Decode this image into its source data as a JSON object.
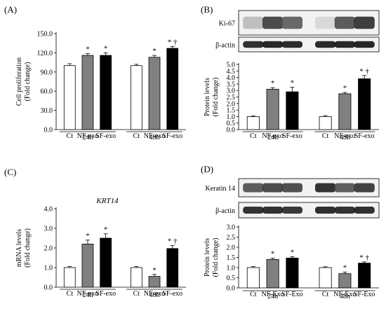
{
  "panels": [
    {
      "id": "A",
      "label": "(A)",
      "title": "",
      "ylabel_lines": [
        "Cell proliferation",
        "(Fold change)"
      ],
      "yticks": [
        "0.0",
        "30.0",
        "60.0",
        "90.0",
        "120.0",
        "150.0"
      ]
    },
    {
      "id": "B",
      "label": "(B)",
      "blot_labels": [
        "Ki-67",
        "β-actin"
      ],
      "ylabel_lines": [
        "Protein levels",
        "(Fold change)"
      ],
      "yticks": [
        "0.0",
        "0.5",
        "1.0",
        "1.5",
        "2.0",
        "2.5",
        "3.0",
        "3.5",
        "4.0",
        "4.5",
        "5.0"
      ]
    },
    {
      "id": "C",
      "label": "(C)",
      "title": "KRT14",
      "ylabel_lines": [
        "mRNA levels",
        "(Fold change)"
      ],
      "yticks": [
        "0.0",
        "1.0",
        "2.0",
        "3.0",
        "4.0"
      ]
    },
    {
      "id": "D",
      "label": "(D)",
      "blot_labels": [
        "Keratin 14",
        "β-actin"
      ],
      "ylabel_lines": [
        "Protein levels",
        "(Fold change)"
      ],
      "yticks": [
        "0.0",
        "0.5",
        "1.0",
        "1.5",
        "2.0",
        "2.5",
        "3.0"
      ]
    }
  ],
  "colors": {
    "Ct": "#ffffff",
    "NF": "#808080",
    "SF": "#000000"
  },
  "chart_data": [
    {
      "panel": "A",
      "type": "bar",
      "groups": [
        "24h",
        "48h"
      ],
      "categories": [
        "Ct",
        "NF-exo",
        "SF-exo",
        "Ct",
        "NF-exo",
        "SF-exo"
      ],
      "values": [
        100,
        116,
        116,
        100,
        113,
        127
      ],
      "errors": [
        3,
        3,
        4,
        2,
        3,
        3
      ],
      "annotations": [
        "",
        "*",
        "*",
        "",
        "*",
        "* †"
      ],
      "ylim": [
        0,
        150
      ]
    },
    {
      "panel": "B",
      "type": "bar",
      "groups": [
        "24h",
        "48h"
      ],
      "categories": [
        "Ct",
        "NF-exo",
        "SF-exo",
        "Ct",
        "NF-exo",
        "SF-exo"
      ],
      "values": [
        1.0,
        3.1,
        2.9,
        1.0,
        2.75,
        3.9
      ],
      "errors": [
        0.05,
        0.12,
        0.35,
        0.07,
        0.1,
        0.25
      ],
      "annotations": [
        "",
        "*",
        "*",
        "",
        "*",
        "* †"
      ],
      "ylim": [
        0,
        5
      ]
    },
    {
      "panel": "C",
      "type": "bar",
      "title": "KRT14",
      "groups": [
        "24h",
        "48h"
      ],
      "categories": [
        "Ct",
        "NF-exo",
        "SF-exo",
        "Ct",
        "NF-exo",
        "SF-exo"
      ],
      "values": [
        1.0,
        2.2,
        2.5,
        1.0,
        0.55,
        1.97
      ],
      "errors": [
        0.05,
        0.2,
        0.22,
        0.05,
        0.1,
        0.15
      ],
      "annotations": [
        "",
        "*",
        "*",
        "",
        "*",
        "* †"
      ],
      "ylim": [
        0,
        4
      ]
    },
    {
      "panel": "D",
      "type": "bar",
      "groups": [
        "24h",
        "48h"
      ],
      "categories": [
        "Ct",
        "NF-Exo",
        "SF-Exo",
        "Ct",
        "NF-Exo",
        "SF-Exo"
      ],
      "values": [
        1.0,
        1.4,
        1.47,
        1.0,
        0.7,
        1.22
      ],
      "errors": [
        0.05,
        0.06,
        0.07,
        0.04,
        0.08,
        0.06
      ],
      "annotations": [
        "",
        "*",
        "*",
        "",
        "*",
        "* †"
      ],
      "ylim": [
        0,
        3
      ]
    }
  ]
}
